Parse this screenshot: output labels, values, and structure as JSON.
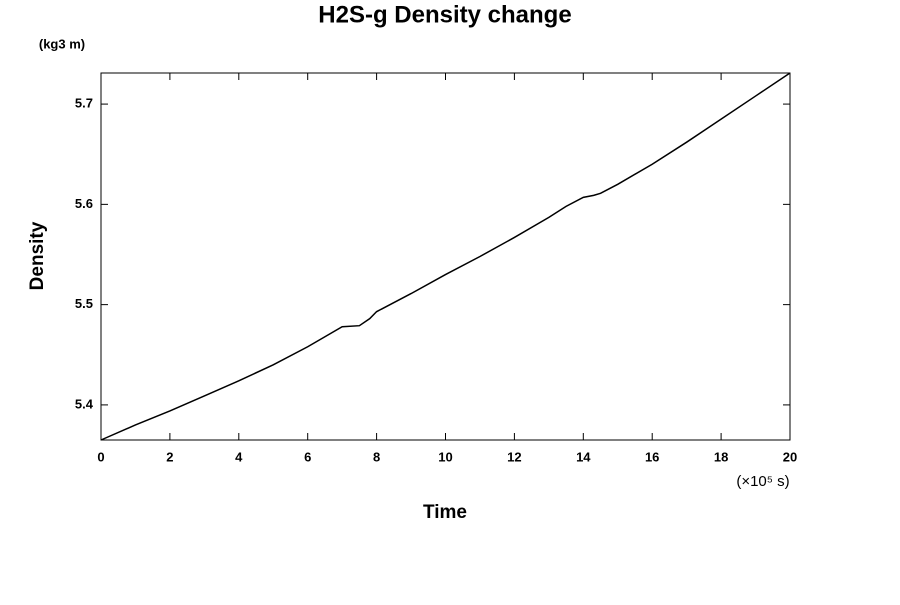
{
  "chart_data": {
    "type": "line",
    "title": "H2S-g Density change",
    "y_unit": "(kg3 m)",
    "ylabel": "Density",
    "xlabel": "Time",
    "x_unit": "(×10⁵ s)",
    "x": [
      0,
      1,
      2,
      3,
      4,
      5,
      6,
      6.5,
      7,
      7.5,
      7.8,
      8,
      9,
      10,
      11,
      12,
      13,
      13.5,
      14,
      14.3,
      14.5,
      15,
      16,
      17,
      18,
      19,
      20
    ],
    "series": [
      {
        "name": "H2S-g",
        "color": "#000000",
        "values": [
          5.365,
          5.38,
          5.394,
          5.409,
          5.424,
          5.44,
          5.458,
          5.468,
          5.478,
          5.479,
          5.486,
          5.493,
          5.511,
          5.53,
          5.548,
          5.567,
          5.587,
          5.598,
          5.607,
          5.609,
          5.611,
          5.62,
          5.64,
          5.662,
          5.685,
          5.708,
          5.731
        ]
      }
    ],
    "xlim": [
      0,
      20
    ],
    "xticks": [
      0,
      2,
      4,
      6,
      8,
      10,
      12,
      14,
      16,
      18,
      20
    ],
    "ylim": [
      5.365,
      5.731
    ],
    "yticks": [
      5.4,
      5.5,
      5.6,
      5.7
    ],
    "grid": false
  }
}
